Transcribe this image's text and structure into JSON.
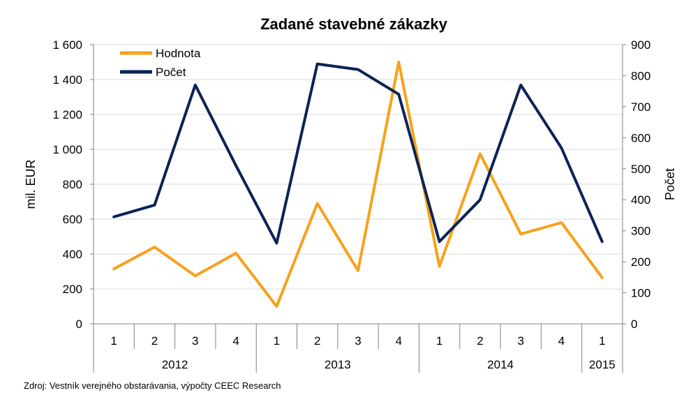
{
  "chart_data": {
    "type": "line",
    "title": "Zadané stavebné zákazky",
    "ylabel": "mil. EUR",
    "y2label": "Počet",
    "ylim": [
      0,
      1600
    ],
    "y2lim": [
      0,
      900
    ],
    "yticks": [
      "0",
      "200",
      "400",
      "600",
      "800",
      "1 000",
      "1 200",
      "1 400",
      "1 600"
    ],
    "y2ticks": [
      "0",
      "100",
      "200",
      "300",
      "400",
      "500",
      "600",
      "700",
      "800",
      "900"
    ],
    "quarters": [
      "1",
      "2",
      "3",
      "4",
      "1",
      "2",
      "3",
      "4",
      "1",
      "2",
      "3",
      "4",
      "1"
    ],
    "years": [
      {
        "label": "2012",
        "count": 4
      },
      {
        "label": "2013",
        "count": 4
      },
      {
        "label": "2014",
        "count": 4
      },
      {
        "label": "2015",
        "count": 1
      }
    ],
    "series": [
      {
        "name": "Hodnota",
        "axis": "left",
        "color": "#f7a11c",
        "values": [
          315,
          440,
          275,
          405,
          100,
          690,
          305,
          1500,
          330,
          975,
          515,
          580,
          265
        ]
      },
      {
        "name": "Počet",
        "axis": "right",
        "color": "#0c2356",
        "values": [
          345,
          383,
          770,
          510,
          260,
          838,
          820,
          740,
          265,
          400,
          770,
          567,
          265
        ]
      }
    ],
    "grid": true,
    "legend_position": "top-left"
  },
  "source_text": "Zdroj: Vestník verejného obstarávania,  výpočty CEEC Research"
}
